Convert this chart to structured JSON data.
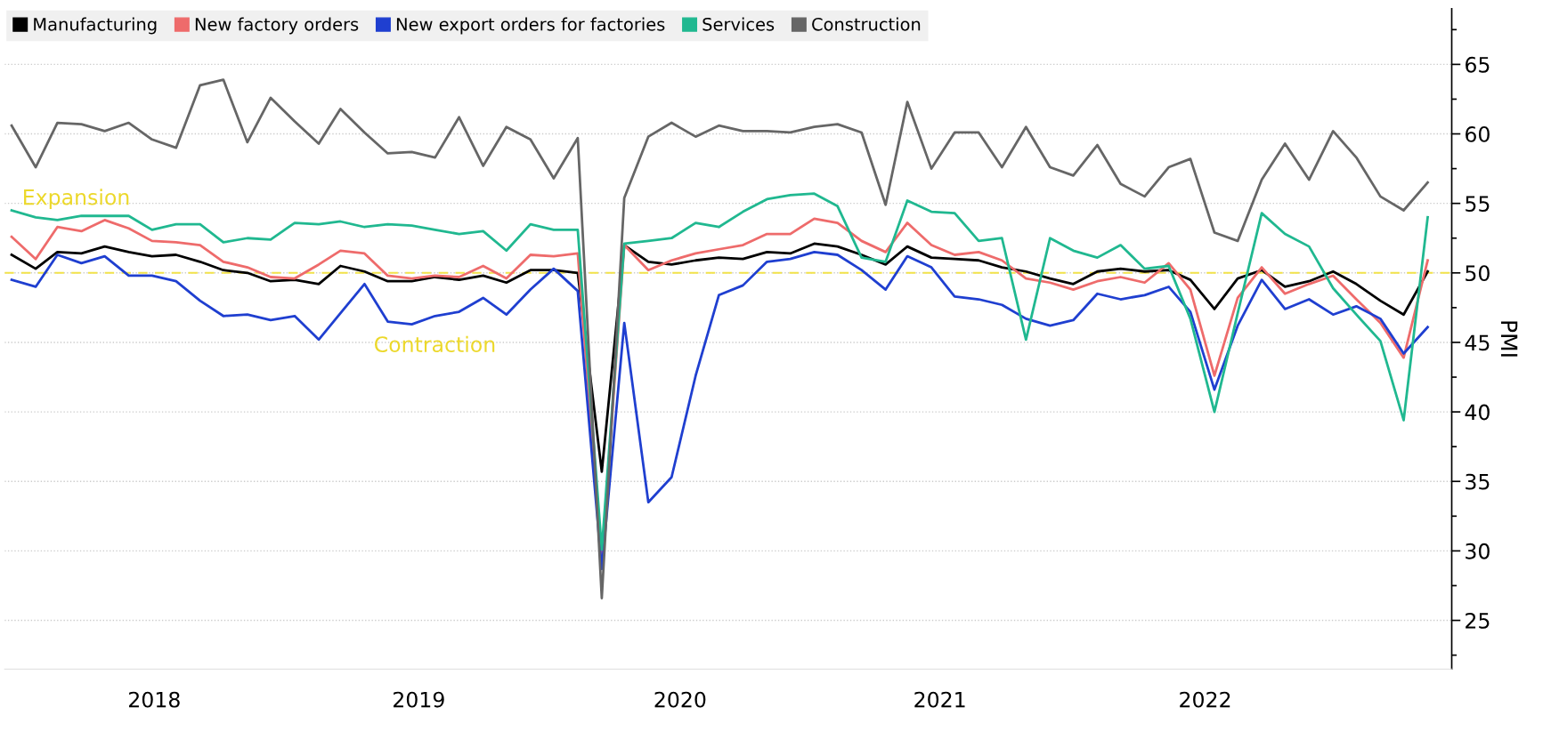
{
  "chart_data": {
    "type": "line",
    "ylabel": "PMI",
    "x": [
      "2018-01",
      "2018-02",
      "2018-03",
      "2018-04",
      "2018-05",
      "2018-06",
      "2018-07",
      "2018-08",
      "2018-09",
      "2018-10",
      "2018-11",
      "2018-12",
      "2019-01",
      "2019-02",
      "2019-03",
      "2019-04",
      "2019-05",
      "2019-06",
      "2019-07",
      "2019-08",
      "2019-09",
      "2019-10",
      "2019-11",
      "2019-12",
      "2020-01",
      "2020-02",
      "2020-03",
      "2020-04",
      "2020-05",
      "2020-06",
      "2020-07",
      "2020-08",
      "2020-09",
      "2020-10",
      "2020-11",
      "2020-12",
      "2021-01",
      "2021-02",
      "2021-03",
      "2021-04",
      "2021-05",
      "2021-06",
      "2021-07",
      "2021-08",
      "2021-09",
      "2021-10",
      "2021-11",
      "2021-12",
      "2022-01",
      "2022-02",
      "2022-03",
      "2022-04",
      "2022-05",
      "2022-06",
      "2022-07",
      "2022-08",
      "2022-09",
      "2022-10",
      "2022-11",
      "2022-12",
      "2023-01"
    ],
    "xlim": [
      "2017-12-23",
      "2023-02-01"
    ],
    "xticks": [
      {
        "value": "2018-07-04",
        "label": "2018"
      },
      {
        "value": "2019-06-10",
        "label": "2019"
      },
      {
        "value": "2020-05-12",
        "label": "2020"
      },
      {
        "value": "2021-04-12",
        "label": "2021"
      },
      {
        "value": "2022-03-20",
        "label": "2022"
      }
    ],
    "ylim": [
      21.5,
      69
    ],
    "yticks": [
      {
        "value": 22.5,
        "label": null
      },
      25,
      {
        "value": 27.5,
        "label": null
      },
      30,
      {
        "value": 32.5,
        "label": null
      },
      35,
      {
        "value": 37.5,
        "label": null
      },
      40,
      {
        "value": 42.5,
        "label": null
      },
      45,
      {
        "value": 47.5,
        "label": null
      },
      50,
      {
        "value": 52.5,
        "label": null
      },
      55,
      {
        "value": 57.5,
        "label": null
      },
      60,
      {
        "value": 62.5,
        "label": null
      },
      65,
      {
        "value": 67.5,
        "label": null
      }
    ],
    "grid": "y",
    "legend": "top left",
    "marker": "none",
    "line_style": "solid",
    "ref_lines": [
      {
        "axis": "y",
        "value": 50,
        "color": "#f2e24a",
        "line_style": "dashed"
      }
    ],
    "annotations": [
      "Expansion",
      "Contraction"
    ],
    "series": [
      {
        "name": "Manufacturing",
        "color": "#000000",
        "values": [
          51.3,
          50.3,
          51.5,
          51.4,
          51.9,
          51.5,
          51.2,
          51.3,
          50.8,
          50.2,
          50.0,
          49.4,
          49.5,
          49.2,
          50.5,
          50.1,
          49.4,
          49.4,
          49.7,
          49.5,
          49.8,
          49.3,
          50.2,
          50.2,
          50.0,
          35.7,
          52.0,
          50.8,
          50.6,
          50.9,
          51.1,
          51.0,
          51.5,
          51.4,
          52.1,
          51.9,
          51.3,
          50.6,
          51.9,
          51.1,
          51.0,
          50.9,
          50.4,
          50.1,
          49.6,
          49.2,
          50.1,
          50.3,
          50.1,
          50.2,
          49.5,
          47.4,
          49.6,
          50.2,
          49.0,
          49.4,
          50.1,
          49.2,
          48.0,
          47.0,
          50.1
        ]
      },
      {
        "name": "New factory orders",
        "color": "#ee6b6b",
        "values": [
          52.6,
          51.0,
          53.3,
          53.0,
          53.8,
          53.2,
          52.3,
          52.2,
          52.0,
          50.8,
          50.4,
          49.7,
          49.6,
          50.6,
          51.6,
          51.4,
          49.8,
          49.6,
          49.8,
          49.7,
          50.5,
          49.6,
          51.3,
          51.2,
          51.4,
          29.3,
          52.0,
          50.2,
          50.9,
          51.4,
          51.7,
          52.0,
          52.8,
          52.8,
          53.9,
          53.6,
          52.3,
          51.5,
          53.6,
          52.0,
          51.3,
          51.5,
          50.9,
          49.6,
          49.3,
          48.8,
          49.4,
          49.7,
          49.3,
          50.7,
          48.8,
          42.6,
          48.2,
          50.4,
          48.5,
          49.2,
          49.8,
          48.1,
          46.4,
          43.9,
          50.9
        ]
      },
      {
        "name": "New export orders for factories",
        "color": "#1f3fd0",
        "values": [
          49.5,
          49.0,
          51.3,
          50.7,
          51.2,
          49.8,
          49.8,
          49.4,
          48.0,
          46.9,
          47.0,
          46.6,
          46.9,
          45.2,
          47.1,
          49.2,
          46.5,
          46.3,
          46.9,
          47.2,
          48.2,
          47.0,
          48.8,
          50.3,
          48.7,
          28.7,
          46.4,
          33.5,
          35.3,
          42.6,
          48.4,
          49.1,
          50.8,
          51.0,
          51.5,
          51.3,
          50.2,
          48.8,
          51.2,
          50.4,
          48.3,
          48.1,
          47.7,
          46.7,
          46.2,
          46.6,
          48.5,
          48.1,
          48.4,
          49.0,
          47.2,
          41.6,
          46.2,
          49.5,
          47.4,
          48.1,
          47.0,
          47.6,
          46.7,
          44.2,
          46.1
        ]
      },
      {
        "name": "Services",
        "color": "#20b890",
        "values": [
          54.5,
          54.0,
          53.8,
          54.1,
          54.1,
          54.1,
          53.1,
          53.5,
          53.5,
          52.2,
          52.5,
          52.4,
          53.6,
          53.5,
          53.7,
          53.3,
          53.5,
          53.4,
          53.1,
          52.8,
          53.0,
          51.6,
          53.5,
          53.1,
          53.1,
          30.1,
          52.1,
          52.3,
          52.5,
          53.6,
          53.3,
          54.4,
          55.3,
          55.6,
          55.7,
          54.8,
          51.1,
          50.8,
          55.2,
          54.4,
          54.3,
          52.3,
          52.5,
          45.2,
          52.5,
          51.6,
          51.1,
          52.0,
          50.3,
          50.5,
          46.7,
          40.0,
          47.1,
          54.3,
          52.8,
          51.9,
          48.9,
          47.0,
          45.1,
          39.4,
          54.0
        ]
      },
      {
        "name": "Construction",
        "color": "#666666",
        "values": [
          60.6,
          57.6,
          60.8,
          60.7,
          60.2,
          60.8,
          59.6,
          59.0,
          63.5,
          63.9,
          59.4,
          62.6,
          60.9,
          59.3,
          61.8,
          60.1,
          58.6,
          58.7,
          58.3,
          61.2,
          57.7,
          60.5,
          59.6,
          56.8,
          59.7,
          26.6,
          55.4,
          59.8,
          60.8,
          59.8,
          60.6,
          60.2,
          60.2,
          60.1,
          60.5,
          60.7,
          60.1,
          54.9,
          62.3,
          57.5,
          60.1,
          60.1,
          57.6,
          60.5,
          57.6,
          57.0,
          59.2,
          56.4,
          55.5,
          57.6,
          58.2,
          52.9,
          52.3,
          56.7,
          59.3,
          56.7,
          60.2,
          58.3,
          55.5,
          54.5,
          56.5
        ]
      }
    ]
  }
}
